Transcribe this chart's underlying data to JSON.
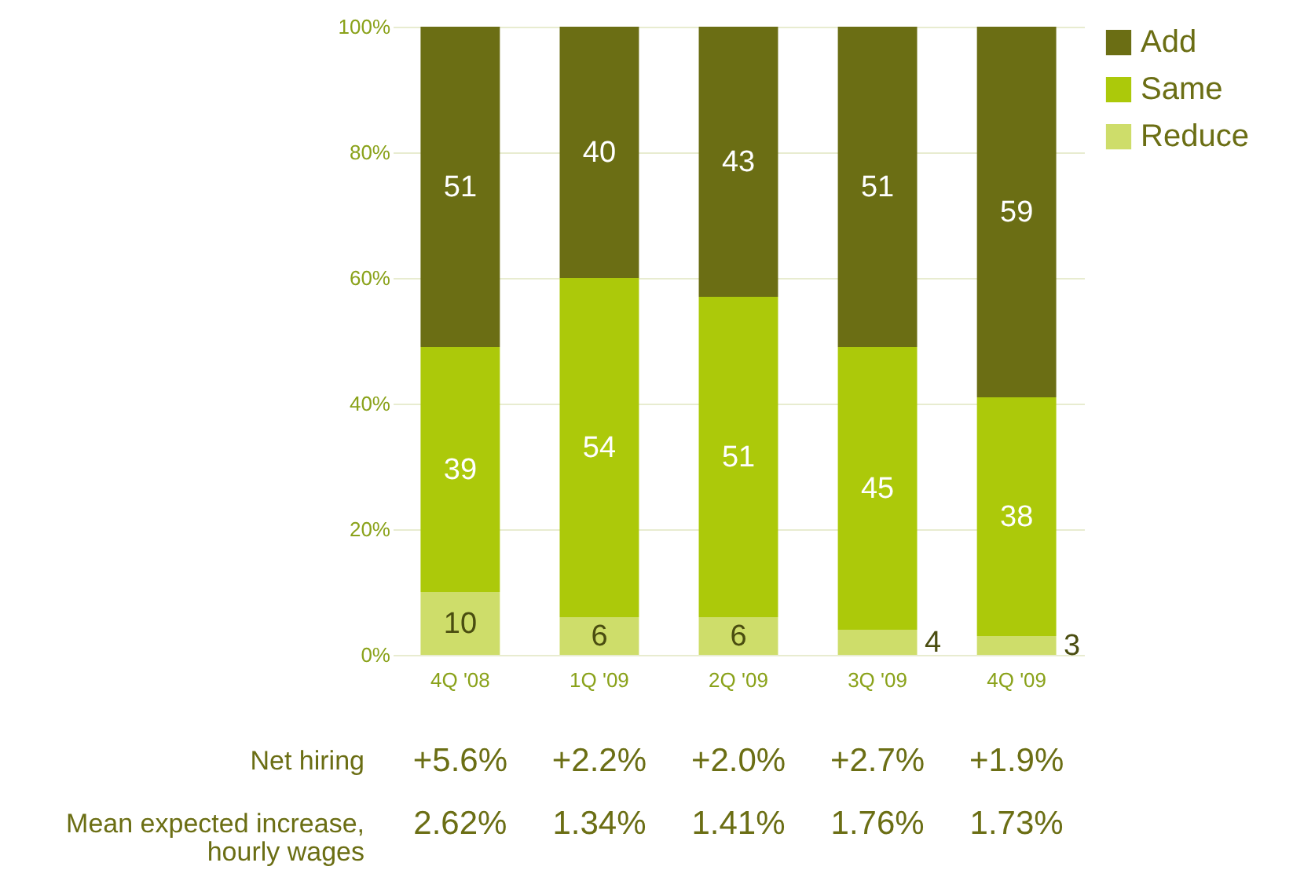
{
  "chart_data": {
    "type": "bar",
    "stacked": true,
    "data_labels": true,
    "grid": "y",
    "legend": "top right",
    "categories": [
      "4Q '08",
      "1Q '09",
      "2Q '09",
      "3Q '09",
      "4Q '09"
    ],
    "series": [
      {
        "name": "Reduce",
        "color": "#cedd6a",
        "values": [
          10,
          6,
          6,
          4,
          3
        ]
      },
      {
        "name": "Same",
        "color": "#acc90a",
        "values": [
          39,
          54,
          51,
          45,
          38
        ]
      },
      {
        "name": "Add",
        "color": "#6b6e14",
        "values": [
          51,
          40,
          43,
          51,
          59
        ]
      }
    ],
    "ylim": [
      0,
      100
    ],
    "yticks": [
      {
        "value": 0,
        "label": "0%"
      },
      {
        "value": 20,
        "label": "20%"
      },
      {
        "value": 40,
        "label": "40%"
      },
      {
        "value": 60,
        "label": "60%"
      },
      {
        "value": 80,
        "label": "80%"
      },
      {
        "value": 100,
        "label": "100%"
      }
    ],
    "annotations": [
      "Net hiring",
      "+5.6%",
      "+2.2%",
      "+2.0%",
      "+2.7%",
      "+1.9%",
      "Mean expected increase, hourly wages",
      "2.62%",
      "1.34%",
      "1.41%",
      "1.76%",
      "1.73%"
    ]
  }
}
